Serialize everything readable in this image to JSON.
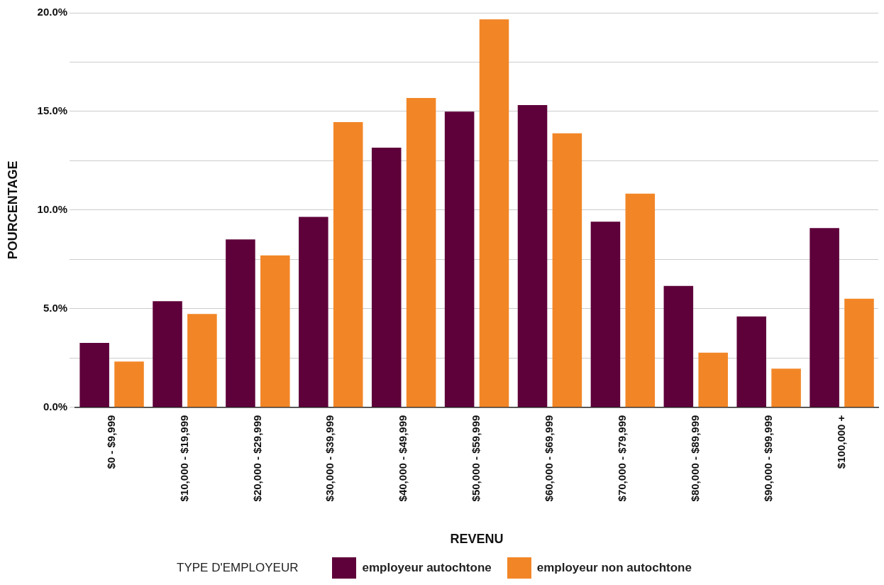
{
  "chart_data": {
    "type": "bar",
    "xlabel": "REVENU",
    "ylabel": "POURCENTAGE",
    "legend_title": "TYPE D'EMPLOYEUR",
    "categories": [
      "$0 - $9,999",
      "$10,000 - $19,999",
      "$20,000 - $29,999",
      "$30,000 - $39,999",
      "$40,000 - $49,999",
      "$50,000 - $59,999",
      "$60,000 - $69,999",
      "$70,000 - $79,999",
      "$80,000 - $89,999",
      "$90,000 - $99,999",
      "$100,000 +"
    ],
    "series": [
      {
        "name": "employeur autochtone",
        "color": "#5e003a",
        "values": [
          3.26,
          5.38,
          8.51,
          9.65,
          13.16,
          14.99,
          15.32,
          9.41,
          6.15,
          4.6,
          9.08
        ]
      },
      {
        "name": "employeur non autochtone",
        "color": "#f28627",
        "values": [
          2.32,
          4.73,
          7.7,
          14.46,
          15.68,
          19.67,
          13.89,
          10.83,
          2.77,
          1.96,
          5.5
        ]
      }
    ],
    "ylim": [
      0,
      20
    ],
    "yticks": [
      {
        "value": 0,
        "label": "0.0%"
      },
      {
        "value": 2.5,
        "label": null
      },
      {
        "value": 5,
        "label": "5.0%"
      },
      {
        "value": 7.5,
        "label": null
      },
      {
        "value": 10,
        "label": "10.0%"
      },
      {
        "value": 12.5,
        "label": null
      },
      {
        "value": 15,
        "label": "15.0%"
      },
      {
        "value": 17.5,
        "label": null
      },
      {
        "value": 20,
        "label": "20.0%"
      }
    ],
    "grid": "y",
    "legend": "bottom"
  }
}
